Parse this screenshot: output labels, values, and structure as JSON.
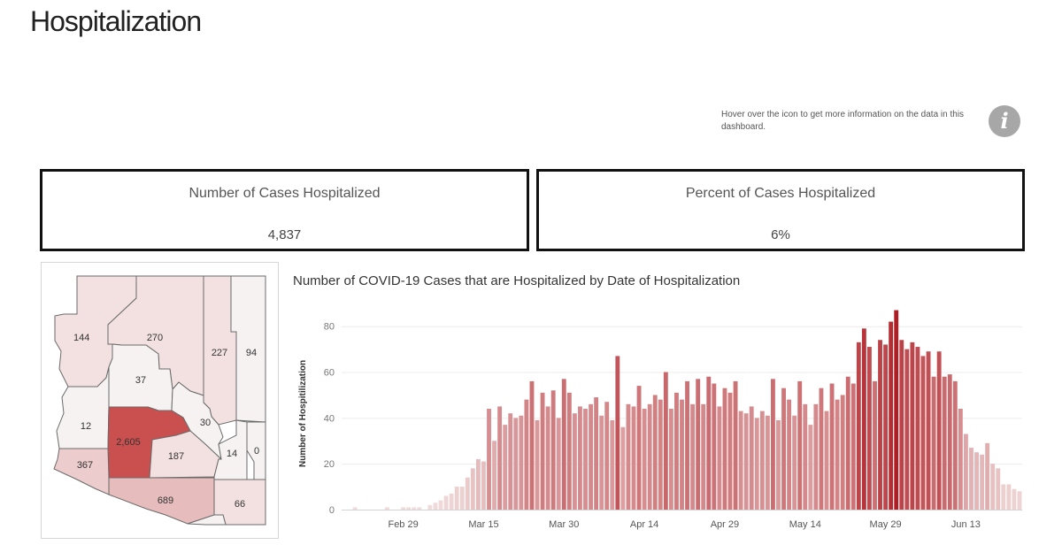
{
  "page": {
    "title": "Hospitalization"
  },
  "info": {
    "text": "Hover over the icon to get more information on the data in this dashboard.",
    "icon": "info-icon",
    "icon_glyph": "i"
  },
  "kpis": [
    {
      "label": "Number of Cases Hospitalized",
      "value": "4,837"
    },
    {
      "label": "Percent of Cases Hospitalized",
      "value": "6%"
    }
  ],
  "county_map": {
    "counties": [
      {
        "name": "Mohave",
        "value": "144"
      },
      {
        "name": "Coconino",
        "value": "270"
      },
      {
        "name": "Navajo",
        "value": "227"
      },
      {
        "name": "Apache",
        "value": "94"
      },
      {
        "name": "Yavapai",
        "value": "37"
      },
      {
        "name": "La Paz",
        "value": "12"
      },
      {
        "name": "Gila",
        "value": "30"
      },
      {
        "name": "Maricopa",
        "value": "2,605"
      },
      {
        "name": "Yuma",
        "value": "367"
      },
      {
        "name": "Pinal",
        "value": "187"
      },
      {
        "name": "Graham",
        "value": "14"
      },
      {
        "name": "Greenlee",
        "value": "0"
      },
      {
        "name": "Pima",
        "value": "689"
      },
      {
        "name": "Cochise",
        "value": "66"
      },
      {
        "name": "Santa Cruz",
        "value": ""
      }
    ],
    "colors": {
      "high": "#c9504f",
      "mid": "#e6bcbc",
      "low": "#f3e1e1",
      "min": "#f6f2f2"
    }
  },
  "chart_data": {
    "type": "bar",
    "title": "Number of COVID-19 Cases that are Hospitalized by Date of Hospitalization",
    "xlabel": "",
    "ylabel": "Number of Hospitilization",
    "x_start": "2020-02-18",
    "x_tick_labels": [
      "Feb 29",
      "Mar 15",
      "Mar 30",
      "Apr 14",
      "Apr 29",
      "May 14",
      "May 29",
      "Jun 13",
      "Jun 28"
    ],
    "y_ticks": [
      0,
      20,
      40,
      60,
      80
    ],
    "ylim": [
      0,
      88
    ],
    "grid": true,
    "colors": {
      "low": "#f0dcdc",
      "high": "#b01e24"
    },
    "values": [
      0,
      0,
      1,
      0,
      0,
      0,
      0,
      0,
      1,
      0,
      0,
      1,
      1,
      1,
      1,
      0,
      2,
      3,
      4,
      6,
      7,
      10,
      10,
      14,
      18,
      22,
      21,
      44,
      30,
      45,
      37,
      42,
      40,
      41,
      48,
      56,
      39,
      51,
      45,
      52,
      40,
      57,
      51,
      42,
      45,
      44,
      46,
      49,
      41,
      47,
      39,
      67,
      36,
      46,
      45,
      54,
      44,
      46,
      50,
      48,
      60,
      44,
      51,
      48,
      56,
      46,
      57,
      46,
      58,
      55,
      45,
      53,
      51,
      56,
      43,
      42,
      45,
      40,
      43,
      41,
      57,
      39,
      53,
      48,
      41,
      56,
      46,
      37,
      46,
      53,
      43,
      55,
      48,
      50,
      58,
      55,
      73,
      79,
      71,
      56,
      74,
      72,
      82,
      87,
      74,
      70,
      73,
      71,
      67,
      69,
      58,
      69,
      58,
      59,
      56,
      44,
      33,
      27,
      25,
      24,
      29,
      20,
      18,
      11,
      11,
      9,
      8
    ]
  }
}
